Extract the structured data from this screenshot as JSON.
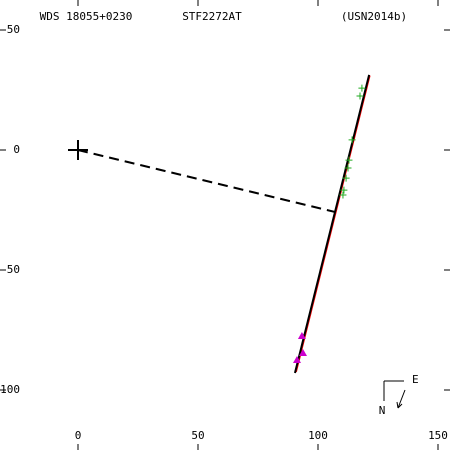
{
  "chart_data": {
    "type": "scatter",
    "titles": [
      "WDS 18055+0230",
      "STF2272AT",
      "(USN2014b)"
    ],
    "xlim": [
      -32.5,
      155
    ],
    "ylim": [
      -125,
      62.5
    ],
    "xticks": [
      0,
      50,
      100,
      150
    ],
    "yticks": [
      50,
      0,
      -50,
      -100
    ],
    "compass_labels": [
      "E",
      "N"
    ],
    "series": [
      {
        "style": "line",
        "color": "#ff0000",
        "x": [
          121.7,
          91.0
        ],
        "values": [
          31.0,
          -92.5
        ]
      },
      {
        "style": "line",
        "color": "#000000",
        "x": [
          121.3,
          90.4
        ],
        "values": [
          31.3,
          -92.9
        ]
      },
      {
        "style": "dashed",
        "color": "#000000",
        "x": [
          0,
          107
        ],
        "values": [
          0,
          -25.8
        ]
      },
      {
        "style": "cross",
        "color": "#000000",
        "x": [
          0
        ],
        "values": [
          0
        ]
      },
      {
        "style": "plus",
        "color": "#22aa22",
        "x": [
          118.3,
          117.5,
          114.2,
          112.9,
          112.5,
          111.7,
          110.8,
          110.4
        ],
        "values": [
          25.8,
          22.5,
          4.2,
          -4.2,
          -7.5,
          -11.7,
          -16.7,
          -18.75
        ]
      },
      {
        "style": "triangle",
        "color": "#cc00cc",
        "x": [
          93.3,
          93.75,
          91.25
        ],
        "values": [
          -77.5,
          -84.6,
          -87.5
        ]
      }
    ]
  }
}
